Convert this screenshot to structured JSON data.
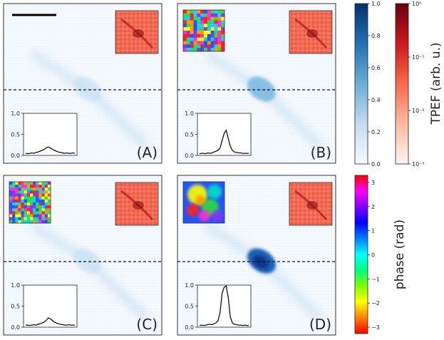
{
  "figure": {
    "panels": [
      {
        "label": "(A)",
        "has_phase_inset": false,
        "phase_kind": "none",
        "profile": [
          0.05,
          0.04,
          0.05,
          0.06,
          0.05,
          0.07,
          0.08,
          0.1,
          0.12,
          0.14,
          0.18,
          0.2,
          0.18,
          0.15,
          0.12,
          0.1,
          0.08,
          0.07,
          0.06,
          0.05,
          0.06,
          0.05,
          0.05,
          0.06,
          0.05
        ]
      },
      {
        "label": "(B)",
        "has_phase_inset": true,
        "phase_kind": "coarse",
        "profile": [
          0.04,
          0.05,
          0.05,
          0.04,
          0.06,
          0.05,
          0.06,
          0.08,
          0.1,
          0.12,
          0.18,
          0.35,
          0.52,
          0.6,
          0.4,
          0.22,
          0.12,
          0.08,
          0.07,
          0.06,
          0.06,
          0.05,
          0.05,
          0.05,
          0.05
        ]
      },
      {
        "label": "(C)",
        "has_phase_inset": true,
        "phase_kind": "random",
        "profile": [
          0.05,
          0.05,
          0.04,
          0.05,
          0.06,
          0.05,
          0.07,
          0.08,
          0.1,
          0.12,
          0.16,
          0.22,
          0.2,
          0.16,
          0.12,
          0.1,
          0.08,
          0.07,
          0.06,
          0.05,
          0.05,
          0.06,
          0.05,
          0.05,
          0.05
        ]
      },
      {
        "label": "(D)",
        "has_phase_inset": true,
        "phase_kind": "smooth",
        "profile": [
          0.04,
          0.05,
          0.04,
          0.05,
          0.06,
          0.07,
          0.06,
          0.08,
          0.1,
          0.15,
          0.35,
          0.8,
          0.95,
          0.98,
          0.7,
          0.25,
          0.1,
          0.07,
          0.06,
          0.05,
          0.05,
          0.04,
          0.05,
          0.04,
          0.04
        ]
      }
    ],
    "colorbars": {
      "intensity": {
        "ticks": [
          "0.0",
          "0.2",
          "0.4",
          "0.6",
          "0.8",
          "1.0"
        ],
        "colors": [
          "#f7fbff",
          "#c6dbef",
          "#6baed6",
          "#2171b5",
          "#08306b"
        ]
      },
      "tpef": {
        "ticks": [
          "10⁰",
          "10⁻¹",
          "10⁻²",
          "10⁻³"
        ],
        "label": "TPEF (arb. u.)",
        "colors": [
          "#fff5f0",
          "#fcbba1",
          "#fb6a4a",
          "#cb181d",
          "#67000d"
        ]
      },
      "phase": {
        "ticks": [
          "3",
          "2",
          "1",
          "0",
          "−1",
          "−2",
          "−3"
        ],
        "label": "phase (rad)",
        "colors": [
          "#ff0000",
          "#ff8000",
          "#ffff00",
          "#80ff00",
          "#00ff80",
          "#00ffff",
          "#0080ff",
          "#0000ff",
          "#8000ff",
          "#ff00ff",
          "#ff0000"
        ]
      }
    },
    "profile_inset": {
      "yticks": [
        "1.0",
        "0.5",
        "0.0"
      ]
    }
  }
}
